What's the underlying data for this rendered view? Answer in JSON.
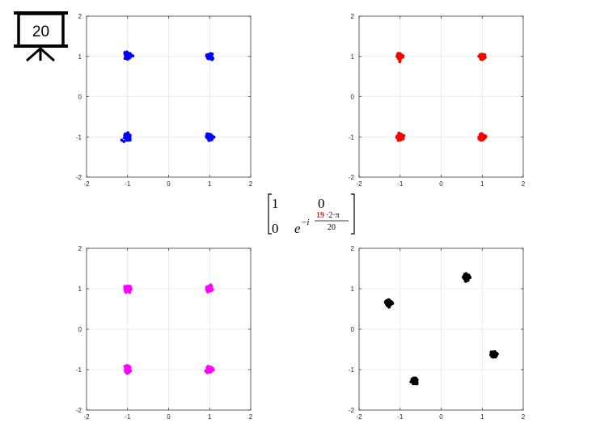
{
  "slide_number": "20",
  "matrix": {
    "r1c1": "1",
    "r1c2": "0",
    "r2c1": "0",
    "exp_base": "e",
    "exp_prefix": "−i",
    "exp_highlight": "19",
    "exp_rest": "·2·π",
    "exp_denominator": "20"
  },
  "chart_data": [
    {
      "type": "scatter",
      "color": "#0000ff",
      "xlim": [
        -2,
        2
      ],
      "ylim": [
        -2,
        2
      ],
      "x_ticks": [
        "-2",
        "-1",
        "0",
        "1",
        "2"
      ],
      "y_ticks": [
        "-2",
        "-1",
        "0",
        "1",
        "2"
      ],
      "grid": true,
      "cluster_centers": [
        [
          -1,
          1
        ],
        [
          1,
          1
        ],
        [
          -1,
          -1
        ],
        [
          1,
          -1
        ]
      ],
      "cluster_spread": 0.06
    },
    {
      "type": "scatter",
      "color": "#ff0000",
      "xlim": [
        -2,
        2
      ],
      "ylim": [
        -2,
        2
      ],
      "x_ticks": [
        "-2",
        "-1",
        "0",
        "1",
        "2"
      ],
      "y_ticks": [
        "-2",
        "-1",
        "0",
        "1",
        "2"
      ],
      "grid": true,
      "cluster_centers": [
        [
          -1,
          1
        ],
        [
          1,
          1
        ],
        [
          -1,
          -1
        ],
        [
          1,
          -1
        ]
      ],
      "cluster_spread": 0.06
    },
    {
      "type": "scatter",
      "color": "#ff00ff",
      "xlim": [
        -2,
        2
      ],
      "ylim": [
        -2,
        2
      ],
      "x_ticks": [
        "-2",
        "-1",
        "0",
        "1",
        "2"
      ],
      "y_ticks": [
        "-2",
        "-1",
        "0",
        "1",
        "2"
      ],
      "grid": true,
      "cluster_centers": [
        [
          -1,
          1
        ],
        [
          1,
          1
        ],
        [
          -1,
          -1
        ],
        [
          1,
          -1
        ]
      ],
      "cluster_spread": 0.06
    },
    {
      "type": "scatter",
      "color": "#000000",
      "xlim": [
        -2,
        2
      ],
      "ylim": [
        -2,
        2
      ],
      "x_ticks": [
        "-2",
        "-1",
        "0",
        "1",
        "2"
      ],
      "y_ticks": [
        "-2",
        "-1",
        "0",
        "1",
        "2"
      ],
      "grid": true,
      "cluster_centers": [
        [
          0.62,
          1.28
        ],
        [
          -1.28,
          0.65
        ],
        [
          1.28,
          -0.62
        ],
        [
          -0.65,
          -1.28
        ]
      ],
      "cluster_spread": 0.06
    }
  ]
}
